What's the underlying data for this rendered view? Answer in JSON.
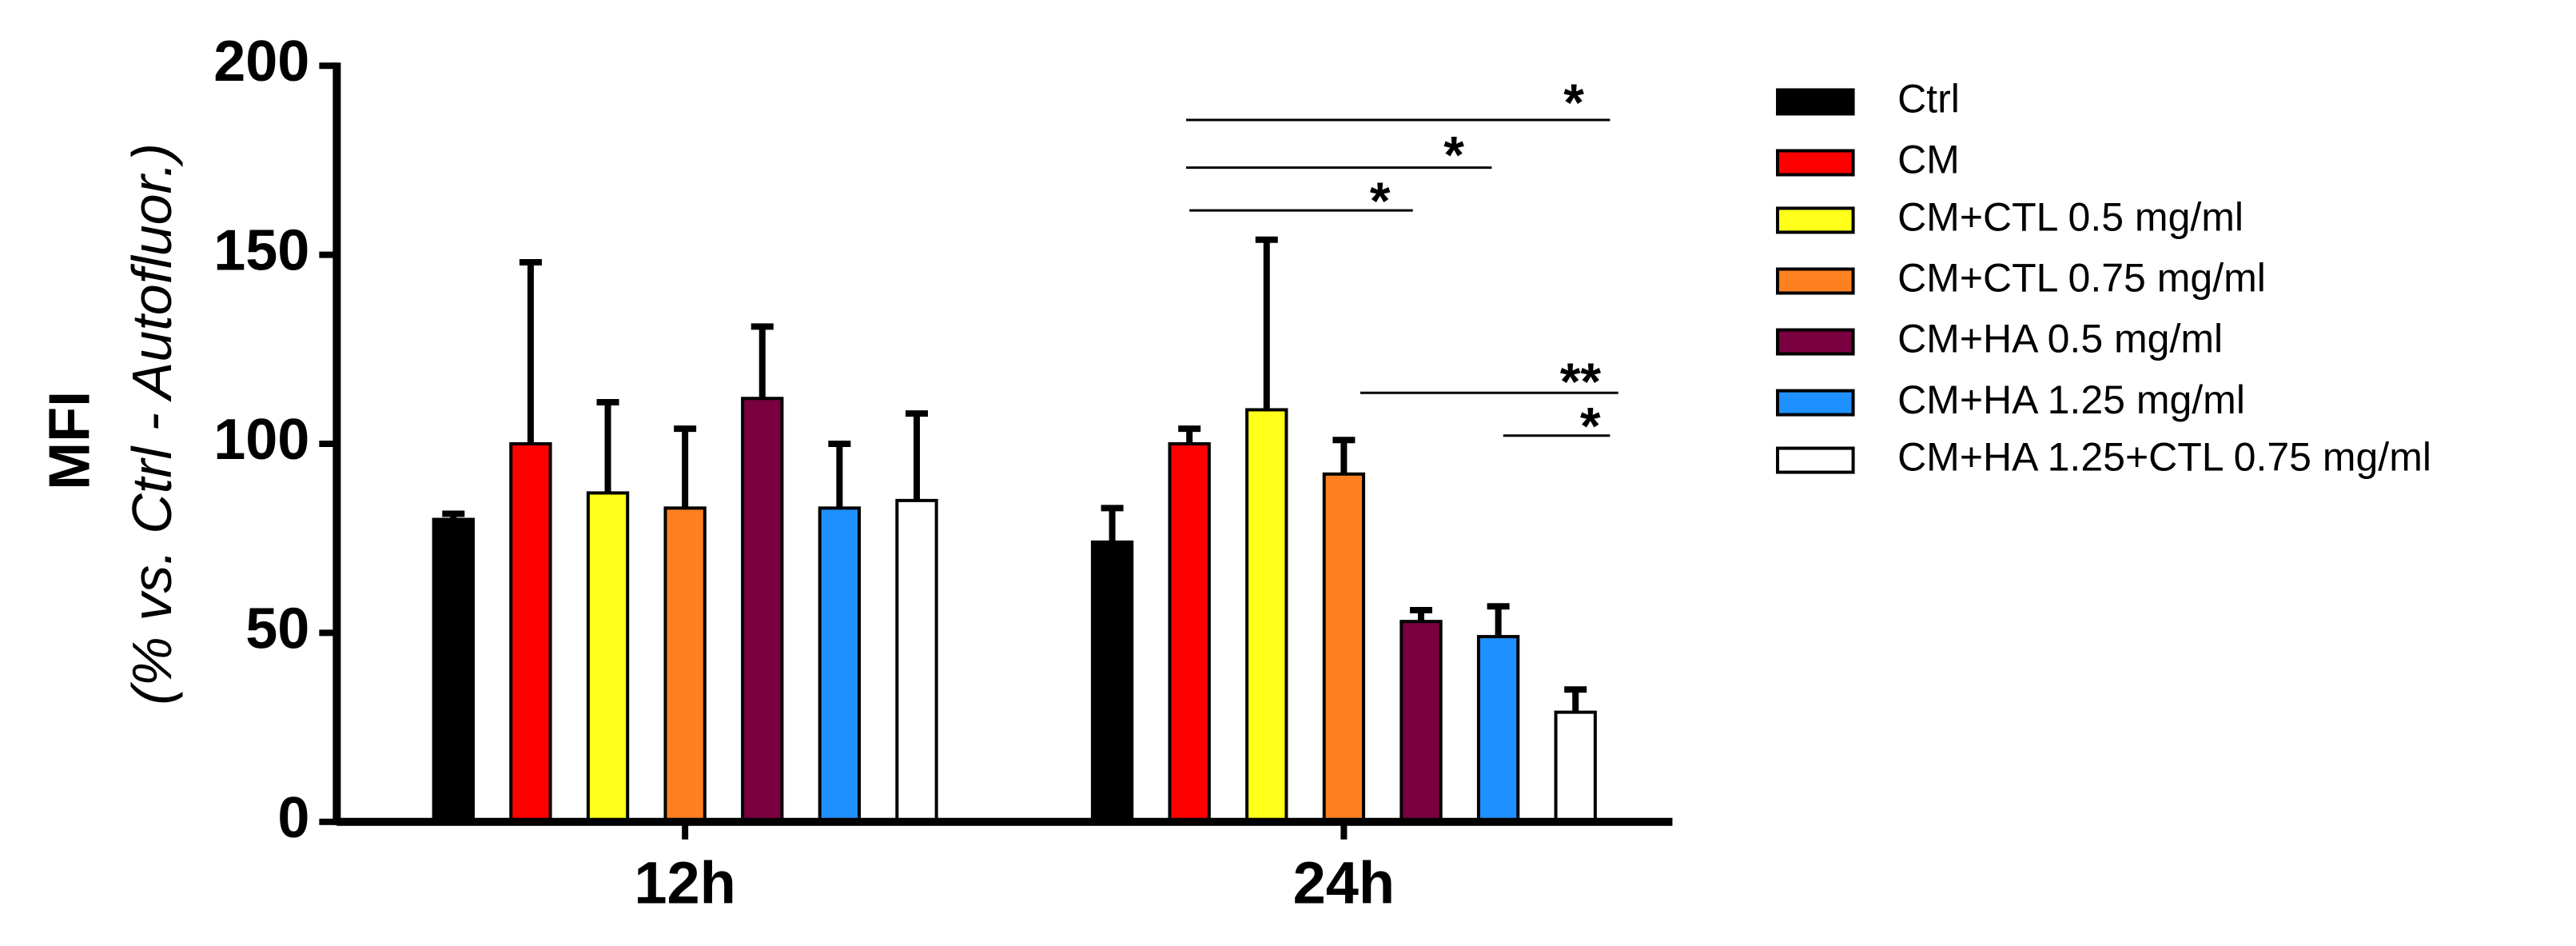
{
  "chart_data": {
    "type": "bar",
    "ylabel": "MFI",
    "ylabel_sub": "(% vs. Ctrl - Autofluor.)",
    "categories": [
      "12h",
      "24h"
    ],
    "ylim": [
      0,
      200
    ],
    "yticks": [
      0,
      50,
      100,
      150,
      200
    ],
    "series": [
      {
        "name": "Ctrl",
        "color": "#000000",
        "values": [
          80,
          74
        ],
        "errors": [
          1.5,
          9
        ]
      },
      {
        "name": "CM",
        "color": "#ff0000",
        "values": [
          100,
          100
        ],
        "errors": [
          48,
          4
        ]
      },
      {
        "name": "CM+CTL 0.5 mg/ml",
        "color": "#ffff1a",
        "values": [
          87,
          109
        ],
        "errors": [
          24,
          45
        ]
      },
      {
        "name": "CM+CTL 0.75 mg/ml",
        "color": "#ff8020",
        "values": [
          83,
          92
        ],
        "errors": [
          21,
          9
        ]
      },
      {
        "name": "CM+HA 0.5 mg/ml",
        "color": "#7a0040",
        "values": [
          112,
          53
        ],
        "errors": [
          19,
          3
        ]
      },
      {
        "name": "CM+HA 1.25 mg/ml",
        "color": "#1e90ff",
        "values": [
          83,
          49
        ],
        "errors": [
          17,
          8
        ]
      },
      {
        "name": "CM+HA 1.25+CTL 0.75 mg/ml",
        "color": "#ffffff",
        "values": [
          85,
          29
        ],
        "errors": [
          23,
          6
        ]
      }
    ],
    "annotations": [
      "*",
      "*",
      "*",
      "**",
      "*"
    ]
  }
}
